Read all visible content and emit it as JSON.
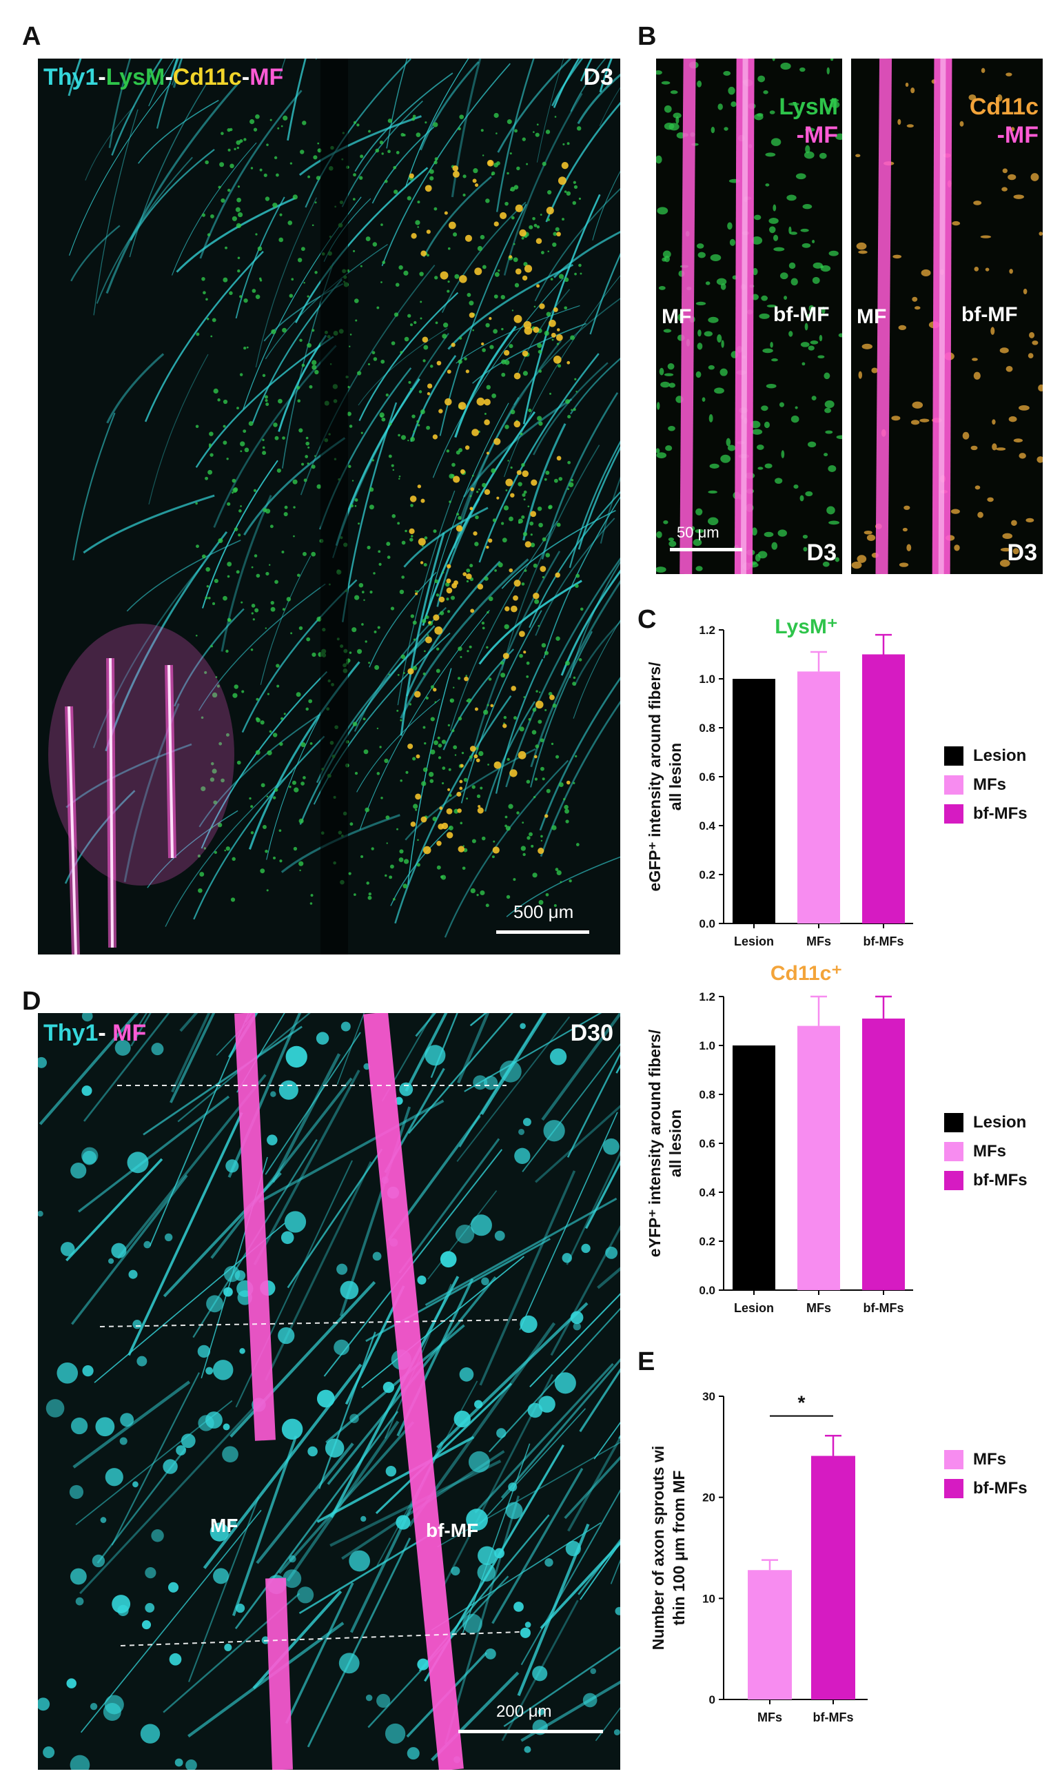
{
  "panels": {
    "A": {
      "letter": "A",
      "label_parts": [
        {
          "text": "Thy1",
          "color": "#35d8dc"
        },
        {
          "text": "-",
          "color": "#ffffff"
        },
        {
          "text": "LysM",
          "color": "#2ec44a"
        },
        {
          "text": "-",
          "color": "#ffffff"
        },
        {
          "text": "Cd11c",
          "color": "#f2d52a"
        },
        {
          "text": "-",
          "color": "#ffffff"
        },
        {
          "text": "MF",
          "color": "#ff5bd6"
        }
      ],
      "day": "D3",
      "scale_bar": "500 μm"
    },
    "B": {
      "letter": "B",
      "left": {
        "stain": "LysM",
        "stain_color": "#2ec44a",
        "suffix": "-MF",
        "label_mf": "MF",
        "label_bf": "bf-MF",
        "scale_bar": "50 μm",
        "day": "D3"
      },
      "right": {
        "stain": "Cd11c",
        "stain_color": "#f3a43a",
        "suffix": "-MF",
        "label_mf": "MF",
        "label_bf": "bf-MF",
        "day": "D3"
      }
    },
    "C": {
      "letter": "C"
    },
    "D": {
      "letter": "D",
      "label_parts": [
        {
          "text": "Thy1",
          "color": "#35d8dc"
        },
        {
          "text": "- ",
          "color": "#ffffff"
        },
        {
          "text": "MF",
          "color": "#ff5bd6"
        }
      ],
      "day": "D30",
      "label_mf": "MF",
      "label_bf": "bf-MF",
      "scale_bar": "200 μm"
    },
    "E": {
      "letter": "E"
    }
  },
  "colors": {
    "lesion": "#000000",
    "mfs": "#f78cf0",
    "bf_mfs": "#d61bc2",
    "cyan": "#35d8dc",
    "green": "#2ec44a",
    "yellow": "#f2c22a",
    "magenta": "#ff5bd6"
  },
  "chart_data": [
    {
      "id": "lysm",
      "type": "bar",
      "title": "LysM⁺",
      "title_color": "#2ec44a",
      "ylabel": "eGFP⁺ intensity around fibers/all lesion",
      "categories": [
        "Lesion",
        "MFs",
        "bf-MFs"
      ],
      "values": [
        1.0,
        1.03,
        1.1
      ],
      "errors": [
        0,
        0.08,
        0.08
      ],
      "colors": [
        "#000000",
        "#f78cf0",
        "#d61bc2"
      ],
      "ylim": [
        0,
        1.2
      ],
      "yticks": [
        "0.0",
        "0.2",
        "0.4",
        "0.6",
        "0.8",
        "1.0",
        "1.2"
      ],
      "legend": [
        "Lesion",
        "MFs",
        "bf-MFs"
      ]
    },
    {
      "id": "cd11c",
      "type": "bar",
      "title": "Cd11c⁺",
      "title_color": "#f3a43a",
      "ylabel": "eYFP⁺ intensity around fibers/all lesion",
      "categories": [
        "Lesion",
        "MFs",
        "bf-MFs"
      ],
      "values": [
        1.0,
        1.08,
        1.11
      ],
      "errors": [
        0,
        0.12,
        0.09
      ],
      "colors": [
        "#000000",
        "#f78cf0",
        "#d61bc2"
      ],
      "ylim": [
        0,
        1.2
      ],
      "yticks": [
        "0.0",
        "0.2",
        "0.4",
        "0.6",
        "0.8",
        "1.0",
        "1.2"
      ],
      "legend": [
        "Lesion",
        "MFs",
        "bf-MFs"
      ]
    },
    {
      "id": "sprouts",
      "type": "bar",
      "title": "",
      "ylabel": "Number of axon sprouts within 100 μm from MF",
      "categories": [
        "MFs",
        "bf-MFs"
      ],
      "values": [
        12.8,
        24.1
      ],
      "errors": [
        1.0,
        2.0
      ],
      "colors": [
        "#f78cf0",
        "#d61bc2"
      ],
      "ylim": [
        0,
        30
      ],
      "yticks": [
        "0",
        "10",
        "20",
        "30"
      ],
      "significance": "*",
      "legend": [
        "MFs",
        "bf-MFs"
      ]
    }
  ]
}
